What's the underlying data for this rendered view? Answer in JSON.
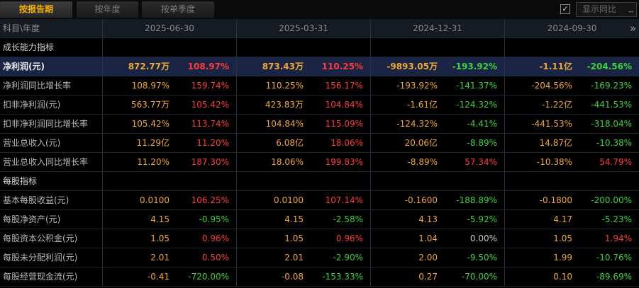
{
  "tabs": [
    {
      "label": "按报告期"
    },
    {
      "label": "按年度"
    },
    {
      "label": "按单季度"
    }
  ],
  "toggle": {
    "checked": "✓",
    "label": "显示同比"
  },
  "colors": {
    "orange": "#f0a830",
    "red": "#ff3b3b",
    "green": "#3bd33b",
    "gray": "#c8c8c8"
  },
  "header": {
    "subject_label": "科目\\年度",
    "periods": [
      "2025-06-30",
      "2025-03-31",
      "2024-12-31",
      "2024-09-30"
    ]
  },
  "sections": [
    {
      "title": "成长能力指标"
    },
    {
      "title": "每股指标"
    }
  ],
  "rows": [
    {
      "label": "净利润(元)",
      "cells": [
        {
          "value": "872.77万",
          "value_color": "orange",
          "yoy": "108.97%",
          "yoy_color": "red"
        },
        {
          "value": "873.43万",
          "value_color": "orange",
          "yoy": "110.25%",
          "yoy_color": "red"
        },
        {
          "value": "-9893.05万",
          "value_color": "orange",
          "yoy": "-193.92%",
          "yoy_color": "green"
        },
        {
          "value": "-1.11亿",
          "value_color": "orange",
          "yoy": "-204.56%",
          "yoy_color": "green"
        }
      ]
    },
    {
      "label": "净利润同比增长率",
      "cells": [
        {
          "value": "108.97%",
          "value_color": "orange",
          "yoy": "159.74%",
          "yoy_color": "red"
        },
        {
          "value": "110.25%",
          "value_color": "orange",
          "yoy": "156.17%",
          "yoy_color": "red"
        },
        {
          "value": "-193.92%",
          "value_color": "orange",
          "yoy": "-141.37%",
          "yoy_color": "green"
        },
        {
          "value": "-204.56%",
          "value_color": "orange",
          "yoy": "-169.23%",
          "yoy_color": "green"
        }
      ]
    },
    {
      "label": "扣非净利润(元)",
      "cells": [
        {
          "value": "563.77万",
          "value_color": "orange",
          "yoy": "105.42%",
          "yoy_color": "red"
        },
        {
          "value": "423.83万",
          "value_color": "orange",
          "yoy": "104.84%",
          "yoy_color": "red"
        },
        {
          "value": "-1.61亿",
          "value_color": "orange",
          "yoy": "-124.32%",
          "yoy_color": "green"
        },
        {
          "value": "-1.22亿",
          "value_color": "orange",
          "yoy": "-441.53%",
          "yoy_color": "green"
        }
      ]
    },
    {
      "label": "扣非净利润同比增长率",
      "cells": [
        {
          "value": "105.42%",
          "value_color": "orange",
          "yoy": "113.74%",
          "yoy_color": "red"
        },
        {
          "value": "104.84%",
          "value_color": "orange",
          "yoy": "115.09%",
          "yoy_color": "red"
        },
        {
          "value": "-124.32%",
          "value_color": "orange",
          "yoy": "-4.41%",
          "yoy_color": "green"
        },
        {
          "value": "-441.53%",
          "value_color": "orange",
          "yoy": "-318.04%",
          "yoy_color": "green"
        }
      ]
    },
    {
      "label": "营业总收入(元)",
      "cells": [
        {
          "value": "11.29亿",
          "value_color": "orange",
          "yoy": "11.20%",
          "yoy_color": "red"
        },
        {
          "value": "6.08亿",
          "value_color": "orange",
          "yoy": "18.06%",
          "yoy_color": "red"
        },
        {
          "value": "20.06亿",
          "value_color": "orange",
          "yoy": "-8.89%",
          "yoy_color": "green"
        },
        {
          "value": "14.87亿",
          "value_color": "orange",
          "yoy": "-10.38%",
          "yoy_color": "green"
        }
      ]
    },
    {
      "label": "营业总收入同比增长率",
      "cells": [
        {
          "value": "11.20%",
          "value_color": "orange",
          "yoy": "187.30%",
          "yoy_color": "red"
        },
        {
          "value": "18.06%",
          "value_color": "orange",
          "yoy": "199.83%",
          "yoy_color": "red"
        },
        {
          "value": "-8.89%",
          "value_color": "orange",
          "yoy": "57.34%",
          "yoy_color": "red"
        },
        {
          "value": "-10.38%",
          "value_color": "orange",
          "yoy": "54.79%",
          "yoy_color": "red"
        }
      ]
    },
    {
      "label": "基本每股收益(元)",
      "cells": [
        {
          "value": "0.0100",
          "value_color": "orange",
          "yoy": "106.25%",
          "yoy_color": "red"
        },
        {
          "value": "0.0100",
          "value_color": "orange",
          "yoy": "107.14%",
          "yoy_color": "red"
        },
        {
          "value": "-0.1600",
          "value_color": "orange",
          "yoy": "-188.89%",
          "yoy_color": "green"
        },
        {
          "value": "-0.1800",
          "value_color": "orange",
          "yoy": "-200.00%",
          "yoy_color": "green"
        }
      ]
    },
    {
      "label": "每股净资产(元)",
      "cells": [
        {
          "value": "4.15",
          "value_color": "orange",
          "yoy": "-0.95%",
          "yoy_color": "green"
        },
        {
          "value": "4.15",
          "value_color": "orange",
          "yoy": "-2.58%",
          "yoy_color": "green"
        },
        {
          "value": "4.13",
          "value_color": "orange",
          "yoy": "-5.92%",
          "yoy_color": "green"
        },
        {
          "value": "4.17",
          "value_color": "orange",
          "yoy": "-5.23%",
          "yoy_color": "green"
        }
      ]
    },
    {
      "label": "每股资本公积金(元)",
      "cells": [
        {
          "value": "1.05",
          "value_color": "orange",
          "yoy": "0.96%",
          "yoy_color": "red"
        },
        {
          "value": "1.05",
          "value_color": "orange",
          "yoy": "0.96%",
          "yoy_color": "red"
        },
        {
          "value": "1.04",
          "value_color": "orange",
          "yoy": "0.00%",
          "yoy_color": "gray"
        },
        {
          "value": "1.05",
          "value_color": "orange",
          "yoy": "1.94%",
          "yoy_color": "red"
        }
      ]
    },
    {
      "label": "每股未分配利润(元)",
      "cells": [
        {
          "value": "2.01",
          "value_color": "orange",
          "yoy": "0.50%",
          "yoy_color": "red"
        },
        {
          "value": "2.01",
          "value_color": "orange",
          "yoy": "-2.90%",
          "yoy_color": "green"
        },
        {
          "value": "2.00",
          "value_color": "orange",
          "yoy": "-9.50%",
          "yoy_color": "green"
        },
        {
          "value": "1.99",
          "value_color": "orange",
          "yoy": "-10.76%",
          "yoy_color": "green"
        }
      ]
    },
    {
      "label": "每股经营现金流(元)",
      "cells": [
        {
          "value": "-0.41",
          "value_color": "orange",
          "yoy": "-720.00%",
          "yoy_color": "green"
        },
        {
          "value": "-0.08",
          "value_color": "orange",
          "yoy": "-153.33%",
          "yoy_color": "green"
        },
        {
          "value": "0.27",
          "value_color": "orange",
          "yoy": "-70.00%",
          "yoy_color": "green"
        },
        {
          "value": "0.10",
          "value_color": "orange",
          "yoy": "-89.69%",
          "yoy_color": "green"
        }
      ]
    }
  ]
}
